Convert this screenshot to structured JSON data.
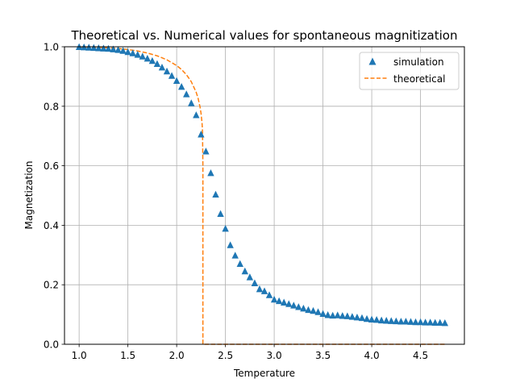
{
  "chart_data": {
    "type": "scatter",
    "title": "Theoretical vs. Numerical values for spontaneous magnitization",
    "xlabel": "Temperature",
    "ylabel": "Magnetization",
    "xlim": [
      0.85,
      4.95
    ],
    "ylim": [
      0.0,
      1.0
    ],
    "xticks": [
      "1.0",
      "1.5",
      "2.0",
      "2.5",
      "3.0",
      "3.5",
      "4.0",
      "4.5"
    ],
    "yticks": [
      "0.0",
      "0.2",
      "0.4",
      "0.6",
      "0.8",
      "1.0"
    ],
    "grid": true,
    "legend_position": "top-right",
    "series": [
      {
        "name": "simulation",
        "style": "triangle-markers",
        "color": "#1f77b4",
        "x": [
          1.0,
          1.05,
          1.1,
          1.15,
          1.2,
          1.25,
          1.3,
          1.35,
          1.4,
          1.45,
          1.5,
          1.55,
          1.6,
          1.65,
          1.7,
          1.75,
          1.8,
          1.85,
          1.9,
          1.95,
          2.0,
          2.05,
          2.1,
          2.15,
          2.2,
          2.25,
          2.3,
          2.35,
          2.4,
          2.45,
          2.5,
          2.55,
          2.6,
          2.65,
          2.7,
          2.75,
          2.8,
          2.85,
          2.9,
          2.95,
          3.0,
          3.05,
          3.1,
          3.15,
          3.2,
          3.25,
          3.3,
          3.35,
          3.4,
          3.45,
          3.5,
          3.55,
          3.6,
          3.65,
          3.7,
          3.75,
          3.8,
          3.85,
          3.9,
          3.95,
          4.0,
          4.05,
          4.1,
          4.15,
          4.2,
          4.25,
          4.3,
          4.35,
          4.4,
          4.45,
          4.5,
          4.55,
          4.6,
          4.65,
          4.7,
          4.75
        ],
        "y": [
          0.999,
          0.998,
          0.997,
          0.996,
          0.995,
          0.994,
          0.993,
          0.991,
          0.989,
          0.986,
          0.982,
          0.978,
          0.973,
          0.967,
          0.96,
          0.952,
          0.942,
          0.93,
          0.917,
          0.902,
          0.885,
          0.865,
          0.84,
          0.81,
          0.77,
          0.705,
          0.648,
          0.575,
          0.503,
          0.438,
          0.388,
          0.333,
          0.298,
          0.27,
          0.245,
          0.225,
          0.205,
          0.185,
          0.178,
          0.165,
          0.15,
          0.145,
          0.14,
          0.135,
          0.13,
          0.125,
          0.12,
          0.115,
          0.112,
          0.108,
          0.102,
          0.098,
          0.096,
          0.097,
          0.095,
          0.094,
          0.092,
          0.09,
          0.088,
          0.085,
          0.083,
          0.082,
          0.08,
          0.079,
          0.078,
          0.077,
          0.076,
          0.076,
          0.075,
          0.074,
          0.074,
          0.073,
          0.073,
          0.072,
          0.072,
          0.071
        ]
      },
      {
        "name": "theoretical",
        "style": "dashed-line",
        "color": "#ff7f0e",
        "x": [
          1.0,
          1.1,
          1.2,
          1.3,
          1.4,
          1.5,
          1.6,
          1.7,
          1.8,
          1.9,
          2.0,
          2.05,
          2.1,
          2.15,
          2.2,
          2.22,
          2.24,
          2.25,
          2.26,
          2.265,
          2.269,
          2.269,
          2.3,
          2.5,
          3.0,
          3.5,
          4.0,
          4.5,
          4.75
        ],
        "y": [
          0.9993,
          0.9988,
          0.9979,
          0.9964,
          0.9941,
          0.9907,
          0.9858,
          0.979,
          0.9695,
          0.9561,
          0.9369,
          0.9235,
          0.9061,
          0.8825,
          0.8472,
          0.8262,
          0.7969,
          0.7758,
          0.7439,
          0.7166,
          0.6,
          0.0,
          0.0,
          0.0,
          0.0,
          0.0,
          0.0,
          0.0,
          0.0
        ]
      }
    ]
  }
}
